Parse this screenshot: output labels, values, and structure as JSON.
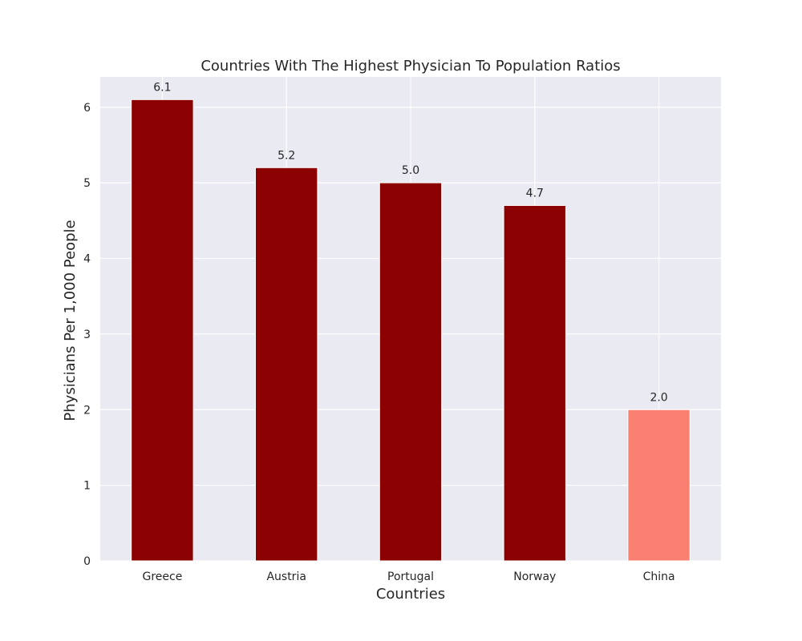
{
  "chart_data": {
    "type": "bar",
    "title": "Countries With The Highest Physician To Population Ratios",
    "xlabel": "Countries",
    "ylabel": "Physicians Per 1,000 People",
    "categories": [
      "Greece",
      "Austria",
      "Portugal",
      "Norway",
      "China"
    ],
    "values": [
      6.1,
      5.2,
      5.0,
      4.7,
      2.0
    ],
    "value_labels": [
      "6.1",
      "5.2",
      "5.0",
      "4.7",
      "2.0"
    ],
    "bar_colors": [
      "#8b0000",
      "#8b0000",
      "#8b0000",
      "#8b0000",
      "#fa8072"
    ],
    "ylim": [
      0,
      6.4
    ],
    "yticks": [
      0,
      1,
      2,
      3,
      4,
      5,
      6
    ],
    "grid": true,
    "legend": "none"
  },
  "colors": {
    "plot_background": "#eaeaf2",
    "grid": "#ffffff",
    "text": "#262626"
  }
}
